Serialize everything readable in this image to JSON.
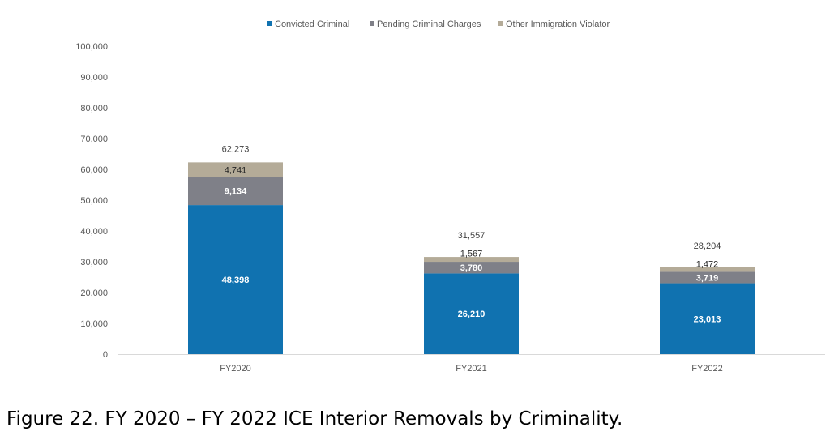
{
  "chart_data": {
    "type": "bar",
    "stacked": true,
    "categories": [
      "FY2020",
      "FY2021",
      "FY2022"
    ],
    "series": [
      {
        "name": "Convicted Criminal",
        "color": "#1072b0",
        "values": [
          48398,
          26210,
          23013
        ],
        "labels": [
          "48,398",
          "26,210",
          "23,013"
        ]
      },
      {
        "name": "Pending Criminal Charges",
        "color": "#7f8088",
        "values": [
          9134,
          3780,
          3719
        ],
        "labels": [
          "9,134",
          "3,780",
          "3,719"
        ]
      },
      {
        "name": "Other Immigration Violator",
        "color": "#b4ab98",
        "values": [
          4741,
          1567,
          1472
        ],
        "labels": [
          "4,741",
          "1,567",
          "1,472"
        ]
      }
    ],
    "totals": [
      62273,
      31557,
      28204
    ],
    "total_labels": [
      "62,273",
      "31,557",
      "28,204"
    ],
    "ylim": [
      0,
      100000
    ],
    "yticks": [
      0,
      10000,
      20000,
      30000,
      40000,
      50000,
      60000,
      70000,
      80000,
      90000,
      100000
    ],
    "ytick_labels": [
      "0",
      "10,000",
      "20,000",
      "30,000",
      "40,000",
      "50,000",
      "60,000",
      "70,000",
      "80,000",
      "90,000",
      "100,000"
    ],
    "legend_position": "top",
    "grid": false
  },
  "caption": "Figure 22. FY 2020 – FY 2022 ICE Interior Removals by Criminality."
}
